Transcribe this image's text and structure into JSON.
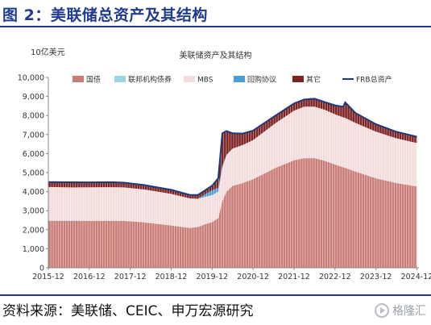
{
  "figure": {
    "title": "图 2：美联储总资产及其结构",
    "source": "资料来源：美联储、CEIC、申万宏源研究",
    "watermark": "格隆汇"
  },
  "colors": {
    "treasuries": "#c97b76",
    "agency": "#9ad6e2",
    "mbs": "#f2dcdc",
    "repo": "#4a9fd0",
    "other": "#7d2222",
    "total": "#1f3a7a",
    "brand": "#1f3b8f"
  },
  "chart_data": {
    "type": "area",
    "title": "美联储资产及其结构",
    "y_unit": "10亿美元",
    "ylim": [
      0,
      10000
    ],
    "yticks": [
      0,
      1000,
      2000,
      3000,
      4000,
      5000,
      6000,
      7000,
      8000,
      9000,
      10000
    ],
    "ytick_labels": [
      "0",
      "1,000",
      "2,000",
      "3,000",
      "4,000",
      "5,000",
      "6,000",
      "7,000",
      "8,000",
      "9,000",
      "10,000"
    ],
    "xlim": [
      2015.95,
      2025.0
    ],
    "xticks": [
      2015.95,
      2016.95,
      2017.95,
      2018.95,
      2019.95,
      2020.95,
      2021.95,
      2022.95,
      2023.95,
      2024.95
    ],
    "xtick_labels": [
      "2015-12",
      "2016-12",
      "2017-12",
      "2018-12",
      "2019-12",
      "2020-12",
      "2021-12",
      "2022-12",
      "2023-12",
      "2024-12"
    ],
    "legend_position": "top",
    "legend": [
      {
        "key": "treasuries",
        "label": "国债",
        "kind": "area"
      },
      {
        "key": "agency",
        "label": "联邦机构债券",
        "kind": "area"
      },
      {
        "key": "mbs",
        "label": "MBS",
        "kind": "area"
      },
      {
        "key": "repo",
        "label": "回购协议",
        "kind": "area"
      },
      {
        "key": "other",
        "label": "其它",
        "kind": "area"
      },
      {
        "key": "total",
        "label": "FRB总资产",
        "kind": "line"
      }
    ],
    "x": [
      2015.95,
      2016.5,
      2016.95,
      2017.5,
      2017.8,
      2018.3,
      2018.95,
      2019.4,
      2019.6,
      2019.8,
      2019.95,
      2020.1,
      2020.2,
      2020.3,
      2020.45,
      2020.7,
      2020.95,
      2021.5,
      2021.95,
      2022.2,
      2022.45,
      2022.7,
      2022.95,
      2023.15,
      2023.2,
      2023.45,
      2023.95,
      2024.45,
      2024.95
    ],
    "series": [
      {
        "key": "treasuries",
        "values": [
          2460,
          2460,
          2460,
          2460,
          2460,
          2380,
          2220,
          2090,
          2140,
          2300,
          2400,
          2600,
          3500,
          4000,
          4300,
          4450,
          4650,
          5250,
          5650,
          5760,
          5760,
          5620,
          5420,
          5280,
          5250,
          5050,
          4700,
          4450,
          4270
        ]
      },
      {
        "key": "agency",
        "values": [
          33,
          20,
          8,
          4,
          2,
          2,
          2,
          2,
          2,
          2,
          2,
          2,
          2,
          2,
          2,
          2,
          2,
          2,
          2,
          2,
          2,
          2,
          2,
          2,
          2,
          2,
          2,
          2,
          2
        ]
      },
      {
        "key": "mbs",
        "values": [
          1750,
          1740,
          1760,
          1770,
          1760,
          1730,
          1660,
          1550,
          1480,
          1430,
          1410,
          1400,
          1760,
          1920,
          1960,
          2000,
          2050,
          2350,
          2600,
          2700,
          2700,
          2680,
          2640,
          2620,
          2620,
          2560,
          2450,
          2350,
          2280
        ]
      },
      {
        "key": "repo",
        "values": [
          0,
          0,
          0,
          0,
          0,
          0,
          0,
          0,
          0,
          150,
          260,
          200,
          100,
          10,
          0,
          0,
          0,
          0,
          0,
          0,
          0,
          0,
          0,
          0,
          0,
          0,
          0,
          0,
          0
        ]
      },
      {
        "key": "other",
        "values": [
          260,
          270,
          260,
          260,
          250,
          230,
          210,
          190,
          200,
          220,
          240,
          500,
          1700,
          1250,
          800,
          600,
          500,
          400,
          380,
          380,
          420,
          400,
          470,
          560,
          820,
          520,
          390,
          340,
          330
        ]
      }
    ],
    "total": [
      4503,
      4490,
      4488,
      4494,
      4472,
      4342,
      4092,
      3832,
      3822,
      4102,
      4312,
      4702,
      7062,
      7182,
      7062,
      7052,
      7202,
      8002,
      8632,
      8842,
      8882,
      8702,
      8532,
      8462,
      8692,
      8132,
      7542,
      7142,
      6882
    ]
  }
}
